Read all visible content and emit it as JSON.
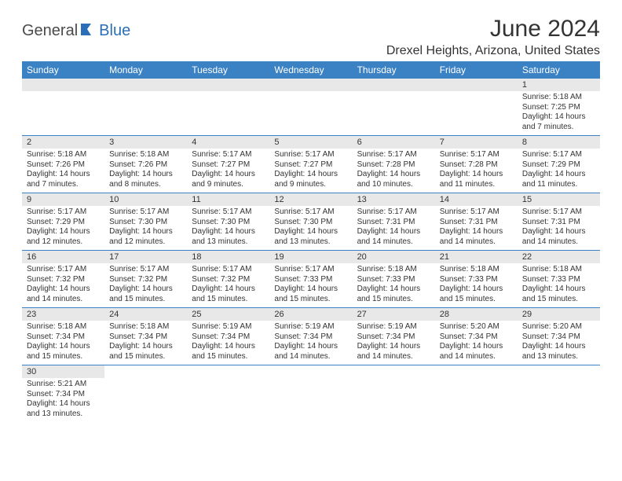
{
  "logo": {
    "text1": "General",
    "text2": "Blue"
  },
  "title": "June 2024",
  "location": "Drexel Heights, Arizona, United States",
  "header_bg": "#3b82c4",
  "header_fg": "#ffffff",
  "daynum_bg": "#e8e8e8",
  "border_color": "#3b82c4",
  "days_of_week": [
    "Sunday",
    "Monday",
    "Tuesday",
    "Wednesday",
    "Thursday",
    "Friday",
    "Saturday"
  ],
  "weeks": [
    [
      null,
      null,
      null,
      null,
      null,
      null,
      {
        "n": "1",
        "sunrise": "Sunrise: 5:18 AM",
        "sunset": "Sunset: 7:25 PM",
        "day": "Daylight: 14 hours and 7 minutes."
      }
    ],
    [
      {
        "n": "2",
        "sunrise": "Sunrise: 5:18 AM",
        "sunset": "Sunset: 7:26 PM",
        "day": "Daylight: 14 hours and 7 minutes."
      },
      {
        "n": "3",
        "sunrise": "Sunrise: 5:18 AM",
        "sunset": "Sunset: 7:26 PM",
        "day": "Daylight: 14 hours and 8 minutes."
      },
      {
        "n": "4",
        "sunrise": "Sunrise: 5:17 AM",
        "sunset": "Sunset: 7:27 PM",
        "day": "Daylight: 14 hours and 9 minutes."
      },
      {
        "n": "5",
        "sunrise": "Sunrise: 5:17 AM",
        "sunset": "Sunset: 7:27 PM",
        "day": "Daylight: 14 hours and 9 minutes."
      },
      {
        "n": "6",
        "sunrise": "Sunrise: 5:17 AM",
        "sunset": "Sunset: 7:28 PM",
        "day": "Daylight: 14 hours and 10 minutes."
      },
      {
        "n": "7",
        "sunrise": "Sunrise: 5:17 AM",
        "sunset": "Sunset: 7:28 PM",
        "day": "Daylight: 14 hours and 11 minutes."
      },
      {
        "n": "8",
        "sunrise": "Sunrise: 5:17 AM",
        "sunset": "Sunset: 7:29 PM",
        "day": "Daylight: 14 hours and 11 minutes."
      }
    ],
    [
      {
        "n": "9",
        "sunrise": "Sunrise: 5:17 AM",
        "sunset": "Sunset: 7:29 PM",
        "day": "Daylight: 14 hours and 12 minutes."
      },
      {
        "n": "10",
        "sunrise": "Sunrise: 5:17 AM",
        "sunset": "Sunset: 7:30 PM",
        "day": "Daylight: 14 hours and 12 minutes."
      },
      {
        "n": "11",
        "sunrise": "Sunrise: 5:17 AM",
        "sunset": "Sunset: 7:30 PM",
        "day": "Daylight: 14 hours and 13 minutes."
      },
      {
        "n": "12",
        "sunrise": "Sunrise: 5:17 AM",
        "sunset": "Sunset: 7:30 PM",
        "day": "Daylight: 14 hours and 13 minutes."
      },
      {
        "n": "13",
        "sunrise": "Sunrise: 5:17 AM",
        "sunset": "Sunset: 7:31 PM",
        "day": "Daylight: 14 hours and 14 minutes."
      },
      {
        "n": "14",
        "sunrise": "Sunrise: 5:17 AM",
        "sunset": "Sunset: 7:31 PM",
        "day": "Daylight: 14 hours and 14 minutes."
      },
      {
        "n": "15",
        "sunrise": "Sunrise: 5:17 AM",
        "sunset": "Sunset: 7:31 PM",
        "day": "Daylight: 14 hours and 14 minutes."
      }
    ],
    [
      {
        "n": "16",
        "sunrise": "Sunrise: 5:17 AM",
        "sunset": "Sunset: 7:32 PM",
        "day": "Daylight: 14 hours and 14 minutes."
      },
      {
        "n": "17",
        "sunrise": "Sunrise: 5:17 AM",
        "sunset": "Sunset: 7:32 PM",
        "day": "Daylight: 14 hours and 15 minutes."
      },
      {
        "n": "18",
        "sunrise": "Sunrise: 5:17 AM",
        "sunset": "Sunset: 7:32 PM",
        "day": "Daylight: 14 hours and 15 minutes."
      },
      {
        "n": "19",
        "sunrise": "Sunrise: 5:17 AM",
        "sunset": "Sunset: 7:33 PM",
        "day": "Daylight: 14 hours and 15 minutes."
      },
      {
        "n": "20",
        "sunrise": "Sunrise: 5:18 AM",
        "sunset": "Sunset: 7:33 PM",
        "day": "Daylight: 14 hours and 15 minutes."
      },
      {
        "n": "21",
        "sunrise": "Sunrise: 5:18 AM",
        "sunset": "Sunset: 7:33 PM",
        "day": "Daylight: 14 hours and 15 minutes."
      },
      {
        "n": "22",
        "sunrise": "Sunrise: 5:18 AM",
        "sunset": "Sunset: 7:33 PM",
        "day": "Daylight: 14 hours and 15 minutes."
      }
    ],
    [
      {
        "n": "23",
        "sunrise": "Sunrise: 5:18 AM",
        "sunset": "Sunset: 7:34 PM",
        "day": "Daylight: 14 hours and 15 minutes."
      },
      {
        "n": "24",
        "sunrise": "Sunrise: 5:18 AM",
        "sunset": "Sunset: 7:34 PM",
        "day": "Daylight: 14 hours and 15 minutes."
      },
      {
        "n": "25",
        "sunrise": "Sunrise: 5:19 AM",
        "sunset": "Sunset: 7:34 PM",
        "day": "Daylight: 14 hours and 15 minutes."
      },
      {
        "n": "26",
        "sunrise": "Sunrise: 5:19 AM",
        "sunset": "Sunset: 7:34 PM",
        "day": "Daylight: 14 hours and 14 minutes."
      },
      {
        "n": "27",
        "sunrise": "Sunrise: 5:19 AM",
        "sunset": "Sunset: 7:34 PM",
        "day": "Daylight: 14 hours and 14 minutes."
      },
      {
        "n": "28",
        "sunrise": "Sunrise: 5:20 AM",
        "sunset": "Sunset: 7:34 PM",
        "day": "Daylight: 14 hours and 14 minutes."
      },
      {
        "n": "29",
        "sunrise": "Sunrise: 5:20 AM",
        "sunset": "Sunset: 7:34 PM",
        "day": "Daylight: 14 hours and 13 minutes."
      }
    ],
    [
      {
        "n": "30",
        "sunrise": "Sunrise: 5:21 AM",
        "sunset": "Sunset: 7:34 PM",
        "day": "Daylight: 14 hours and 13 minutes."
      },
      null,
      null,
      null,
      null,
      null,
      null
    ]
  ]
}
